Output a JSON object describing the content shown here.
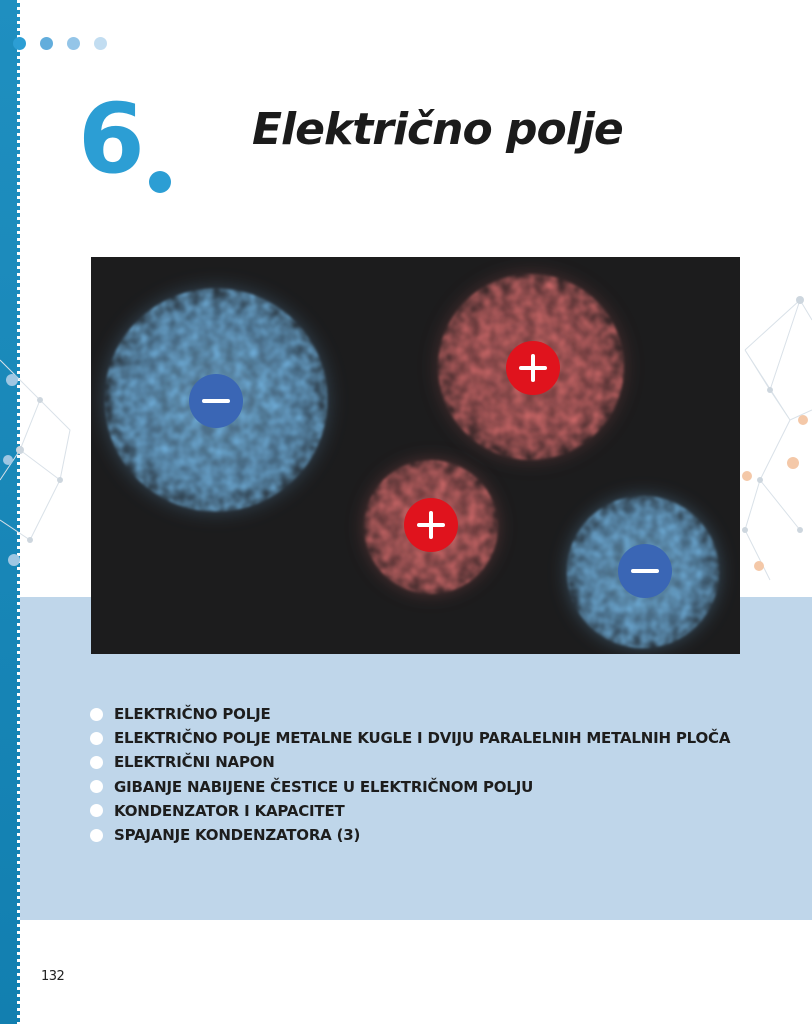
{
  "chapter": {
    "number": "6",
    "title": "Električno polje"
  },
  "illustration": {
    "charges": [
      {
        "sign": "−",
        "polarity": "negative",
        "color": "#3a66b5",
        "cloud_color": "#72b4e2"
      },
      {
        "sign": "+",
        "polarity": "positive",
        "color": "#e0131d",
        "cloud_color": "#d26a6a"
      },
      {
        "sign": "+",
        "polarity": "positive",
        "color": "#e0131d",
        "cloud_color": "#d26a6a"
      },
      {
        "sign": "−",
        "polarity": "negative",
        "color": "#3a66b5",
        "cloud_color": "#72b4e2"
      }
    ]
  },
  "topics": [
    "ELEKTRIČNO POLJE",
    "ELEKTRIČNO POLJE METALNE KUGLE I DVIJU PARALELNIH METALNIH PLOČA",
    "ELEKTRIČNI NAPON",
    "GIBANJE NABIJENE ČESTICE U ELEKTRIČNOM POLJU",
    "KONDENZATOR I KAPACITET",
    "SPAJANJE KONDENZATORA (3)"
  ],
  "page_number": "132",
  "colors": {
    "accent_blue": "#2c9ed4",
    "panel_blue": "#bfd6ea",
    "hero_background": "#1c1c1d",
    "dot_sequence": [
      "#2c9ed4",
      "#62addc",
      "#94c5e8",
      "#c2ddf1"
    ]
  }
}
